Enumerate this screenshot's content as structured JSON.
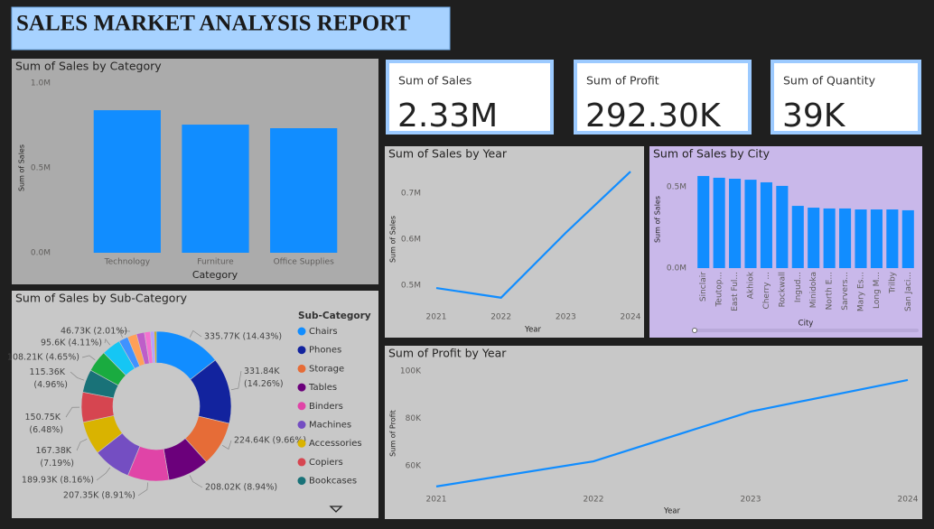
{
  "header": {
    "title": "SALES MARKET ANALYSIS REPORT"
  },
  "cards": [
    {
      "label": "Sum of Sales",
      "value": "2.33M"
    },
    {
      "label": "Sum of Profit",
      "value": "292.30K"
    },
    {
      "label": "Sum of Quantity",
      "value": "39K"
    }
  ],
  "chart_data": [
    {
      "type": "bar",
      "title": "Sum of Sales by Category",
      "x_label": "Category",
      "y_label": "Sum of Sales",
      "categories": [
        "Technology",
        "Furniture",
        "Office Supplies"
      ],
      "values": [
        840000,
        755000,
        734000
      ],
      "color": "#118DFF",
      "ylim": [
        0,
        1000000
      ],
      "yticks": [
        {
          "value": 0,
          "label": "0.0M"
        },
        {
          "value": 500000,
          "label": "0.5M"
        },
        {
          "value": 1000000,
          "label": "1.0M"
        }
      ]
    },
    {
      "type": "line",
      "title": "Sum of Sales by Year",
      "x_label": "Year",
      "y_label": "Sum of Sales",
      "x": [
        2021,
        2022,
        2023,
        2024
      ],
      "values": [
        494000,
        473000,
        614000,
        747000
      ],
      "color": "#118DFF",
      "xlim": [
        2021,
        2024
      ],
      "xticks": [
        2021,
        2022,
        2023,
        2024
      ],
      "ylim": [
        460000,
        760000
      ],
      "yticks": [
        {
          "value": 500000,
          "label": "0.5M"
        },
        {
          "value": 600000,
          "label": "0.6M"
        },
        {
          "value": 700000,
          "label": "0.7M"
        }
      ]
    },
    {
      "type": "bar",
      "title": "Sum of Sales by City",
      "x_label": "City",
      "y_label": "Sum of Sales",
      "categories": [
        "Sinclair",
        "Teutop...",
        "East Ful...",
        "Akhiok",
        "Cherry ...",
        "Rockwall",
        "Ingud...",
        "Minidoka",
        "North E...",
        "Sarvers...",
        "Mary Es...",
        "Long M...",
        "Trilby",
        "San Jaci..."
      ],
      "values": [
        567000,
        556000,
        550000,
        544000,
        528000,
        506000,
        383000,
        372000,
        367000,
        367000,
        361000,
        361000,
        361000,
        356000
      ],
      "color": "#118DFF",
      "ylim": [
        0,
        600000
      ],
      "yticks": [
        {
          "value": 0,
          "label": "0.0M"
        },
        {
          "value": 500000,
          "label": "0.5M"
        }
      ]
    },
    {
      "type": "donut",
      "title": "Sum of Sales by Sub-Category",
      "legend_title": "Sub-Category",
      "categories": [
        "Chairs",
        "Phones",
        "Storage",
        "Tables",
        "Binders",
        "Machines",
        "Accessories",
        "Copiers",
        "Bookcases",
        null,
        null,
        null,
        null,
        null,
        null,
        null,
        null
      ],
      "values": [
        335770,
        331840,
        224640,
        208020,
        207350,
        189930,
        167380,
        150750,
        115360,
        108210,
        95600,
        46730,
        46000,
        40000,
        30000,
        20000,
        9300
      ],
      "value_labels": [
        "335.77K (14.43%)",
        "331.84K (14.26%)",
        "224.64K (9.66%)",
        "208.02K (8.94%)",
        "207.35K (8.91%)",
        "189.93K (8.16%)",
        "167.38K (7.19%)",
        "150.75K (6.48%)",
        "115.36K (4.96%)",
        "108.21K (4.65%)",
        "95.6K (4.11%)",
        "46.73K (2.01%)",
        null,
        null,
        null,
        null,
        null
      ],
      "colors": [
        "#118DFF",
        "#12239E",
        "#E66C37",
        "#6B007B",
        "#E044A7",
        "#744EC2",
        "#D9B300",
        "#D64550",
        "#197278",
        "#1AAB40",
        "#15C6F4",
        "#4092FF",
        "#FFA058",
        "#BE5DC9",
        "#F472D0",
        "#B5A1FF",
        "#C4A200"
      ]
    },
    {
      "type": "line",
      "title": "Sum of Profit by Year",
      "x_label": "Year",
      "y_label": "Sum of Profit",
      "x": [
        2021,
        2022,
        2023,
        2024
      ],
      "values": [
        51300,
        61900,
        82900,
        96200
      ],
      "color": "#118DFF",
      "xlim": [
        2021,
        2024
      ],
      "xticks": [
        2021,
        2022,
        2023,
        2024
      ],
      "ylim": [
        49000,
        106000
      ],
      "yticks": [
        {
          "value": 60000,
          "label": "60K"
        },
        {
          "value": 80000,
          "label": "80K"
        },
        {
          "value": 100000,
          "label": "100K"
        }
      ]
    }
  ]
}
